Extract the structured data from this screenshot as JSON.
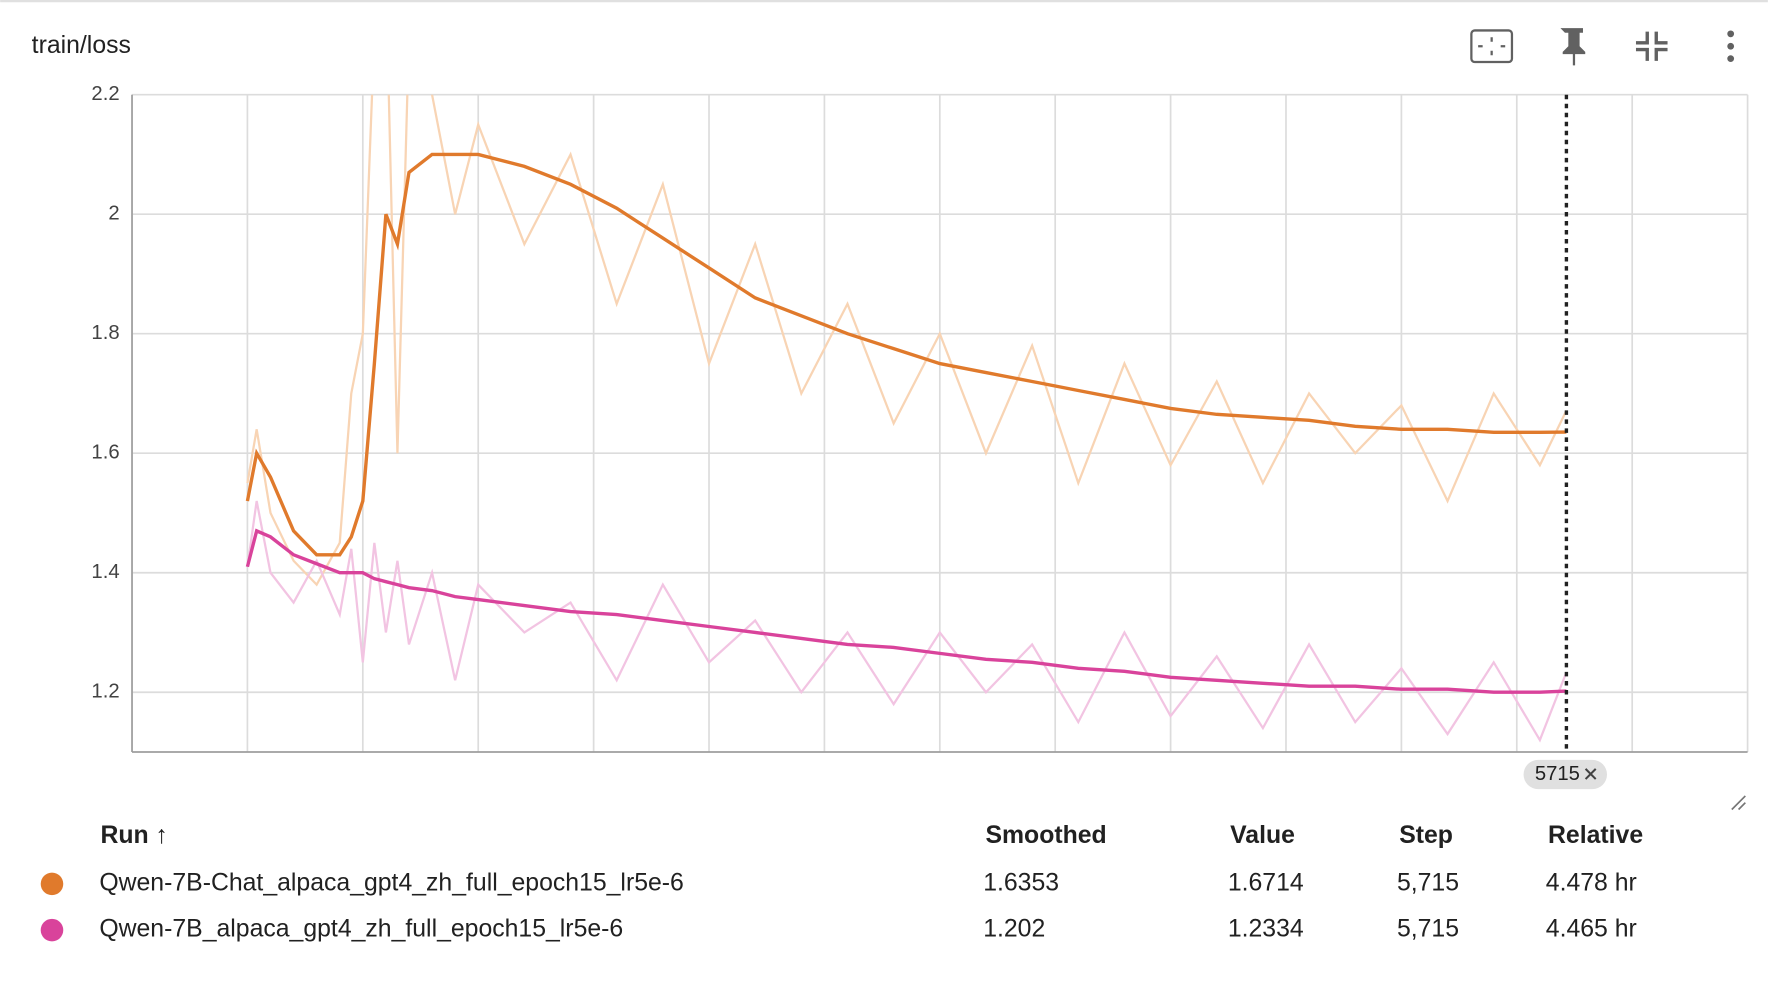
{
  "header": {
    "title": "train/loss"
  },
  "chart_data": {
    "type": "line",
    "xlim": [
      -500,
      6500
    ],
    "ylim": [
      1.1,
      2.2
    ],
    "xticks": [
      {
        "value": -500,
        "label": "-500"
      },
      0,
      500,
      {
        "value": 1000,
        "label": "1,000"
      },
      {
        "value": 1500,
        "label": "1,500"
      },
      {
        "value": 2000,
        "label": "2,000"
      },
      {
        "value": 2500,
        "label": "2,500"
      },
      {
        "value": 3000,
        "label": "3,000"
      },
      {
        "value": 3500,
        "label": "3,500"
      },
      {
        "value": 4000,
        "label": "4,000"
      },
      {
        "value": 4500,
        "label": "4,500"
      },
      {
        "value": 5000,
        "label": "5,000"
      },
      {
        "value": 5500,
        "label": "5,500"
      },
      {
        "value": 6000,
        "label": "6,000"
      },
      {
        "value": 6500,
        "label": "6,500"
      }
    ],
    "yticks": [
      1.2,
      1.4,
      1.6,
      1.8,
      2,
      2.2
    ],
    "grid": true,
    "cursor": 5715,
    "x": [
      0,
      40,
      100,
      200,
      300,
      400,
      450,
      500,
      550,
      600,
      650,
      700,
      800,
      900,
      1000,
      1200,
      1400,
      1600,
      1800,
      2000,
      2200,
      2400,
      2600,
      2800,
      3000,
      3200,
      3400,
      3600,
      3800,
      4000,
      4200,
      4400,
      4600,
      4800,
      5000,
      5200,
      5400,
      5600,
      5715
    ],
    "series": [
      {
        "name": "Qwen-7B-Chat_alpaca_gpt4_zh_full_epoch15_lr5e-6",
        "color": "#e07a2c",
        "raw_color": "#f8d4b4",
        "values": [
          1.52,
          1.6,
          1.56,
          1.47,
          1.43,
          1.43,
          1.46,
          1.52,
          1.75,
          2.0,
          1.95,
          2.07,
          2.1,
          2.1,
          2.1,
          2.08,
          2.05,
          2.01,
          1.96,
          1.91,
          1.86,
          1.83,
          1.8,
          1.775,
          1.75,
          1.735,
          1.72,
          1.705,
          1.69,
          1.675,
          1.665,
          1.66,
          1.655,
          1.645,
          1.64,
          1.64,
          1.635,
          1.635,
          1.6353
        ],
        "raw_values": [
          1.55,
          1.64,
          1.5,
          1.42,
          1.38,
          1.45,
          1.7,
          1.8,
          2.3,
          2.4,
          1.6,
          2.3,
          2.2,
          2.0,
          2.15,
          1.95,
          2.1,
          1.85,
          2.05,
          1.75,
          1.95,
          1.7,
          1.85,
          1.65,
          1.8,
          1.6,
          1.78,
          1.55,
          1.75,
          1.58,
          1.72,
          1.55,
          1.7,
          1.6,
          1.68,
          1.52,
          1.7,
          1.58,
          1.6714
        ]
      },
      {
        "name": "Qwen-7B_alpaca_gpt4_zh_full_epoch15_lr5e-6",
        "color": "#d9439b",
        "raw_color": "#f2c4e2",
        "values": [
          1.41,
          1.47,
          1.46,
          1.43,
          1.415,
          1.4,
          1.4,
          1.4,
          1.39,
          1.385,
          1.38,
          1.375,
          1.37,
          1.36,
          1.355,
          1.345,
          1.335,
          1.33,
          1.32,
          1.31,
          1.3,
          1.29,
          1.28,
          1.275,
          1.265,
          1.255,
          1.25,
          1.24,
          1.235,
          1.225,
          1.22,
          1.215,
          1.21,
          1.21,
          1.205,
          1.205,
          1.2,
          1.2,
          1.202
        ],
        "raw_values": [
          1.41,
          1.52,
          1.4,
          1.35,
          1.42,
          1.33,
          1.44,
          1.25,
          1.45,
          1.3,
          1.42,
          1.28,
          1.4,
          1.22,
          1.38,
          1.3,
          1.35,
          1.22,
          1.38,
          1.25,
          1.32,
          1.2,
          1.3,
          1.18,
          1.3,
          1.2,
          1.28,
          1.15,
          1.3,
          1.16,
          1.26,
          1.14,
          1.28,
          1.15,
          1.24,
          1.13,
          1.25,
          1.12,
          1.2334
        ]
      }
    ]
  },
  "table": {
    "columns": [
      "Run ↑",
      "Smoothed",
      "Value",
      "Step",
      "Relative"
    ],
    "rows": [
      [
        "Qwen-7B-Chat_alpaca_gpt4_zh_full_epoch15_lr5e-6",
        "1.6353",
        "1.6714",
        "5,715",
        "4.478 hr"
      ],
      [
        "Qwen-7B_alpaca_gpt4_zh_full_epoch15_lr5e-6",
        "1.202",
        "1.2334",
        "5,715",
        "4.465 hr"
      ]
    ]
  }
}
